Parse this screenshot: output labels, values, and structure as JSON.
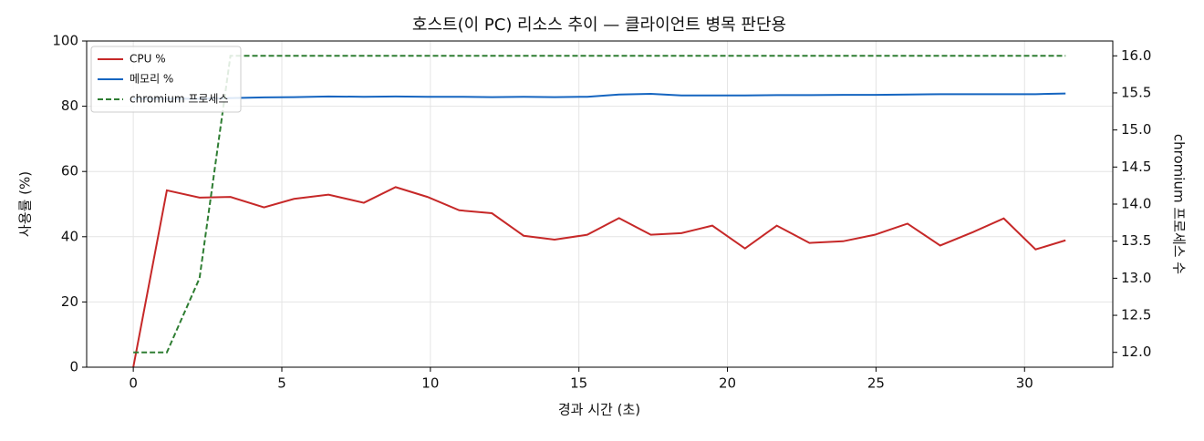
{
  "chart_data": {
    "type": "line",
    "title": "호스트(이 PC) 리소스 추이 — 클라이언트 병목 판단용",
    "x_label": "경과 시간 (초)",
    "y_label": "사용률 (%)",
    "y2_label": "chromium 프로세스 수",
    "x": [
      0,
      1.13,
      2.23,
      3.27,
      4.4,
      5.41,
      6.57,
      7.76,
      8.83,
      9.9,
      10.97,
      12.07,
      13.14,
      14.18,
      15.28,
      16.35,
      17.42,
      18.45,
      19.49,
      20.59,
      21.66,
      22.76,
      23.89,
      24.96,
      26.06,
      27.16,
      28.26,
      29.3,
      30.37,
      31.38
    ],
    "series": [
      {
        "name": "CPU %",
        "color": "#c62828",
        "linestyle": "solid",
        "values": [
          0,
          54.2,
          52,
          52.2,
          49,
          51.6,
          52.9,
          50.4,
          55.2,
          52.2,
          48.1,
          47.2,
          40.3,
          39.1,
          40.6,
          45.7,
          40.6,
          41.1,
          43.4,
          36.4,
          43.4,
          38.1,
          38.6,
          40.6,
          44,
          37.3,
          41.4,
          45.6,
          36.1,
          38.9
        ]
      },
      {
        "name": "메모리 %",
        "color": "#1565c0",
        "linestyle": "solid",
        "values": [
          82.3,
          82.3,
          82.3,
          82.5,
          82.7,
          82.8,
          83,
          82.9,
          83,
          82.9,
          82.9,
          82.8,
          82.9,
          82.8,
          82.9,
          83.6,
          83.8,
          83.3,
          83.3,
          83.3,
          83.4,
          83.4,
          83.5,
          83.5,
          83.6,
          83.7,
          83.7,
          83.7,
          83.7,
          83.9
        ]
      },
      {
        "name": "chromium 프로세스",
        "color": "#2e7d32",
        "linestyle": "dashed",
        "axis": "y2",
        "values": [
          12,
          12,
          13,
          16,
          16,
          16,
          16,
          16,
          16,
          16,
          16,
          16,
          16,
          16,
          16,
          16,
          16,
          16,
          16,
          16,
          16,
          16,
          16,
          16,
          16,
          16,
          16,
          16,
          16,
          16
        ]
      }
    ],
    "xlim": [
      -1.57,
      32.97
    ],
    "xticks": [
      0,
      5,
      10,
      15,
      20,
      25,
      30
    ],
    "ylim": [
      0,
      100
    ],
    "yticks": [
      0,
      20,
      40,
      60,
      80,
      100
    ],
    "y2lim": [
      11.8,
      16.2
    ],
    "y2ticks": [
      {
        "value": 12,
        "label": "12.0"
      },
      {
        "value": 12.5,
        "label": "12.5"
      },
      {
        "value": 13,
        "label": "13.0"
      },
      {
        "value": 13.5,
        "label": "13.5"
      },
      {
        "value": 14,
        "label": "14.0"
      },
      {
        "value": 14.5,
        "label": "14.5"
      },
      {
        "value": 15,
        "label": "15.0"
      },
      {
        "value": 15.5,
        "label": "15.5"
      },
      {
        "value": 16,
        "label": "16.0"
      }
    ],
    "grid": true,
    "legend": "upper left"
  }
}
